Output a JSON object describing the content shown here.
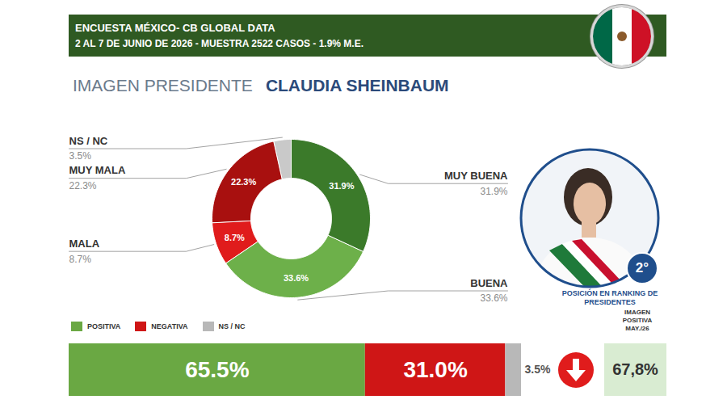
{
  "header": {
    "title": "ENCUESTA MÉXICO- CB GLOBAL DATA",
    "subtitle": "2 AL 7 DE JUNIO DE 2026 - MUESTRA 2522 CASOS - 1.9% M.E."
  },
  "ranking": {
    "position_label": "2°",
    "caption": "POSICIÓN EN RANKING DE PRESIDENTES"
  },
  "previous": {
    "label": "IMAGEN POSITIVA MAY./26",
    "value": 67.8,
    "value_label": "67,8%"
  },
  "chart_data": [
    {
      "type": "pie",
      "title": "IMAGEN PRESIDENTE",
      "subtitle": "CLAUDIA SHEINBAUM",
      "categories": [
        "MUY BUENA",
        "BUENA",
        "MALA",
        "MUY MALA",
        "NS / NC"
      ],
      "values": [
        31.9,
        33.6,
        8.7,
        22.3,
        3.5
      ],
      "value_labels": [
        "31.9%",
        "33.6%",
        "8.7%",
        "22.3%",
        "3.5%"
      ],
      "colors": [
        "#3b7a2a",
        "#6db04a",
        "#e01c1c",
        "#a8100f",
        "#c9c9c9"
      ],
      "data_labels": true
    },
    {
      "type": "bar",
      "orientation": "horizontal",
      "stacked": true,
      "categories": [
        null
      ],
      "series": [
        {
          "name": "POSITIVA",
          "color": "#6aa843",
          "values": [
            65.5
          ],
          "value_labels": [
            "65.5%"
          ]
        },
        {
          "name": "NEGATIVA",
          "color": "#cf1616",
          "values": [
            31.0
          ],
          "value_labels": [
            "31.0%"
          ]
        },
        {
          "name": "NS / NC",
          "color": "#b8b8b8",
          "values": [
            3.5
          ],
          "value_labels": [
            "3.5%"
          ]
        }
      ],
      "xlim": [
        0,
        100
      ],
      "data_labels": true,
      "tick_labels": false,
      "legend": "top-left"
    }
  ]
}
